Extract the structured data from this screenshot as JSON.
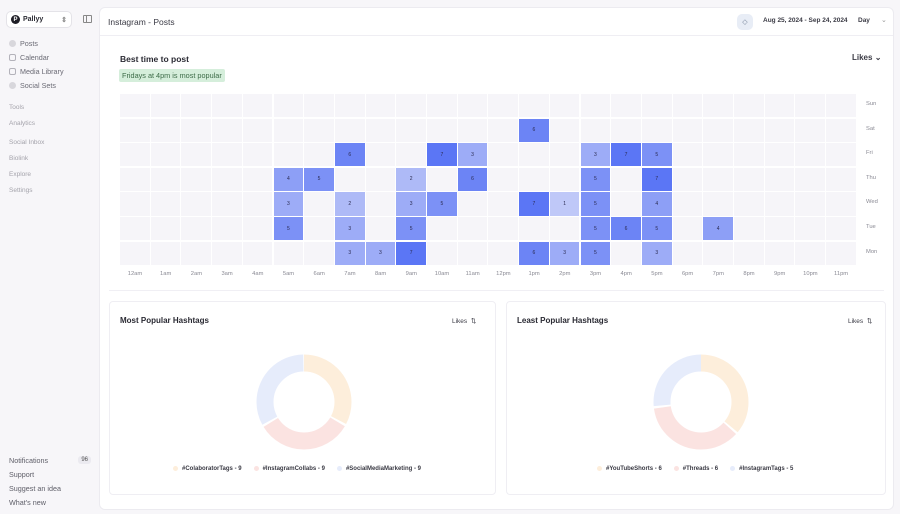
{
  "sidebar": {
    "workspace": "Pallyy",
    "primary_items": [
      {
        "label": "Posts",
        "icon": "posts-icon"
      },
      {
        "label": "Calendar",
        "icon": "calendar-icon"
      },
      {
        "label": "Media Library",
        "icon": "media-icon"
      },
      {
        "label": "Social Sets",
        "icon": "social-sets-icon"
      }
    ],
    "secondary_items": [
      {
        "label": "Tools"
      },
      {
        "label": "Analytics"
      },
      {
        "label": "Social Inbox"
      },
      {
        "label": "Biolink"
      },
      {
        "label": "Explore"
      },
      {
        "label": "Settings"
      }
    ],
    "bottom_items": [
      {
        "label": "Notifications",
        "badge": "96"
      },
      {
        "label": "Support"
      },
      {
        "label": "Suggest an idea"
      },
      {
        "label": "What's new"
      }
    ]
  },
  "header": {
    "title": "Instagram - Posts",
    "date_range": "Aug 25, 2024 - Sep 24, 2024",
    "granularity": "Day"
  },
  "best_time": {
    "title": "Best time to post",
    "metric": "Likes",
    "highlight": "Fridays at 4pm is most popular"
  },
  "chart_data": [
    {
      "type": "heatmap",
      "title": "Best time to post",
      "metric": "Likes",
      "x": [
        "12am",
        "1am",
        "2am",
        "3am",
        "4am",
        "5am",
        "6am",
        "7am",
        "8am",
        "9am",
        "10am",
        "11am",
        "12pm",
        "1pm",
        "2pm",
        "3pm",
        "4pm",
        "5pm",
        "6pm",
        "7pm",
        "8pm",
        "9pm",
        "10pm",
        "11pm"
      ],
      "y": [
        "Sun",
        "Sat",
        "Fri",
        "Thu",
        "Wed",
        "Tue",
        "Mon"
      ],
      "cells": [
        {
          "day": "Sat",
          "hour": "1pm",
          "value": 6
        },
        {
          "day": "Fri",
          "hour": "7am",
          "value": 6
        },
        {
          "day": "Fri",
          "hour": "10am",
          "value": 7
        },
        {
          "day": "Fri",
          "hour": "11am",
          "value": 3
        },
        {
          "day": "Fri",
          "hour": "3pm",
          "value": 3
        },
        {
          "day": "Fri",
          "hour": "4pm",
          "value": 7
        },
        {
          "day": "Fri",
          "hour": "5pm",
          "value": 5
        },
        {
          "day": "Thu",
          "hour": "5am",
          "value": 4
        },
        {
          "day": "Thu",
          "hour": "6am",
          "value": 5
        },
        {
          "day": "Thu",
          "hour": "9am",
          "value": 2
        },
        {
          "day": "Thu",
          "hour": "11am",
          "value": 6
        },
        {
          "day": "Thu",
          "hour": "3pm",
          "value": 5
        },
        {
          "day": "Thu",
          "hour": "5pm",
          "value": 7
        },
        {
          "day": "Wed",
          "hour": "5am",
          "value": 3
        },
        {
          "day": "Wed",
          "hour": "7am",
          "value": 2
        },
        {
          "day": "Wed",
          "hour": "9am",
          "value": 3
        },
        {
          "day": "Wed",
          "hour": "10am",
          "value": 5
        },
        {
          "day": "Wed",
          "hour": "1pm",
          "value": 7
        },
        {
          "day": "Wed",
          "hour": "2pm",
          "value": 1
        },
        {
          "day": "Wed",
          "hour": "3pm",
          "value": 5
        },
        {
          "day": "Wed",
          "hour": "5pm",
          "value": 4
        },
        {
          "day": "Tue",
          "hour": "5am",
          "value": 5
        },
        {
          "day": "Tue",
          "hour": "7am",
          "value": 3
        },
        {
          "day": "Tue",
          "hour": "9am",
          "value": 5
        },
        {
          "day": "Tue",
          "hour": "3pm",
          "value": 5
        },
        {
          "day": "Tue",
          "hour": "4pm",
          "value": 6
        },
        {
          "day": "Tue",
          "hour": "5pm",
          "value": 5
        },
        {
          "day": "Tue",
          "hour": "7pm",
          "value": 4
        },
        {
          "day": "Mon",
          "hour": "7am",
          "value": 3
        },
        {
          "day": "Mon",
          "hour": "8am",
          "value": 3
        },
        {
          "day": "Mon",
          "hour": "9am",
          "value": 7
        },
        {
          "day": "Mon",
          "hour": "1pm",
          "value": 6
        },
        {
          "day": "Mon",
          "hour": "2pm",
          "value": 3
        },
        {
          "day": "Mon",
          "hour": "3pm",
          "value": 5
        },
        {
          "day": "Mon",
          "hour": "5pm",
          "value": 3
        }
      ],
      "color_scale": [
        "#f6f5f9",
        "#5b76f5"
      ]
    },
    {
      "type": "pie",
      "title": "Most Popular Hashtags",
      "metric": "Likes",
      "categories": [
        "#ColaboratorTags",
        "#InstagramCollabs",
        "#SocialMediaMarketing"
      ],
      "values": [
        9,
        9,
        9
      ],
      "colors": [
        "#fdeedb",
        "#fbe3e1",
        "#e6ecfb"
      ]
    },
    {
      "type": "pie",
      "title": "Least Popular Hashtags",
      "metric": "Likes",
      "categories": [
        "#YouTubeShorts",
        "#Threads",
        "#InstagramTags"
      ],
      "values": [
        6,
        6,
        5
      ],
      "colors": [
        "#fdeedb",
        "#fbe3e1",
        "#e6ecfb"
      ]
    }
  ],
  "most_popular": {
    "title": "Most Popular Hashtags",
    "sort_label": "Likes",
    "legend": [
      "#ColaboratorTags - 9",
      "#InstagramCollabs - 9",
      "#SocialMediaMarketing - 9"
    ]
  },
  "least_popular": {
    "title": "Least Popular Hashtags",
    "sort_label": "Likes",
    "legend": [
      "#YouTubeShorts - 6",
      "#Threads - 6",
      "#InstagramTags - 5"
    ]
  }
}
